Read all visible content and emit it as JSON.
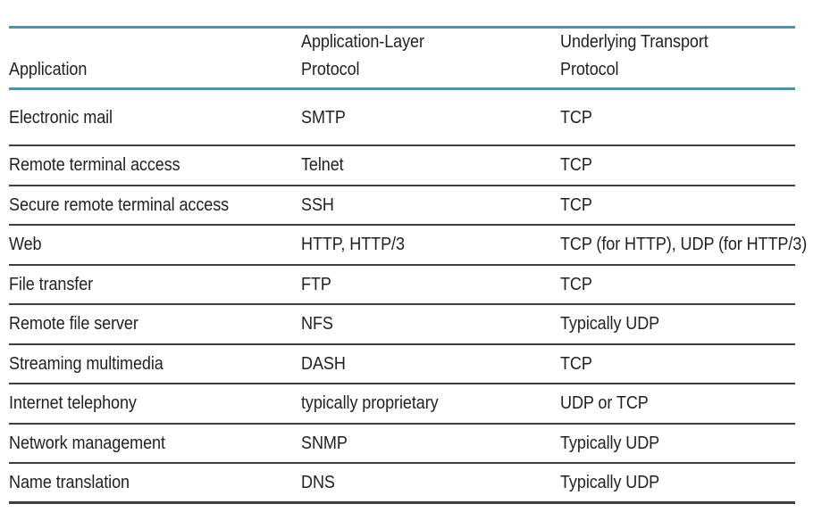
{
  "table": {
    "header": {
      "col1": "Application",
      "col2_line1": "Application-Layer",
      "col2_line2": "Protocol",
      "col3_line1": "Underlying Transport",
      "col3_line2": "Protocol"
    },
    "rows": [
      {
        "application": "Electronic mail",
        "app_protocol": "SMTP",
        "transport_protocol": "TCP"
      },
      {
        "application": "Remote terminal access",
        "app_protocol": "Telnet",
        "transport_protocol": "TCP"
      },
      {
        "application": "Secure remote terminal access",
        "app_protocol": "SSH",
        "transport_protocol": "TCP"
      },
      {
        "application": "Web",
        "app_protocol": "HTTP, HTTP/3",
        "transport_protocol": "TCP (for HTTP), UDP (for HTTP/3)"
      },
      {
        "application": "File transfer",
        "app_protocol": "FTP",
        "transport_protocol": "TCP"
      },
      {
        "application": "Remote file server",
        "app_protocol": "NFS",
        "transport_protocol": "Typically UDP"
      },
      {
        "application": "Streaming multimedia",
        "app_protocol": "DASH",
        "transport_protocol": "TCP"
      },
      {
        "application": "Internet telephony",
        "app_protocol": "typically proprietary",
        "transport_protocol": "UDP or TCP"
      },
      {
        "application": "Network management",
        "app_protocol": "SNMP",
        "transport_protocol": "Typically UDP"
      },
      {
        "application": "Name translation",
        "app_protocol": "DNS",
        "transport_protocol": "Typically UDP"
      }
    ],
    "colors": {
      "accent_rule": "#4f94ad",
      "row_rule": "#3f3f3f",
      "text": "#231f20",
      "background": "#ffffff"
    }
  }
}
